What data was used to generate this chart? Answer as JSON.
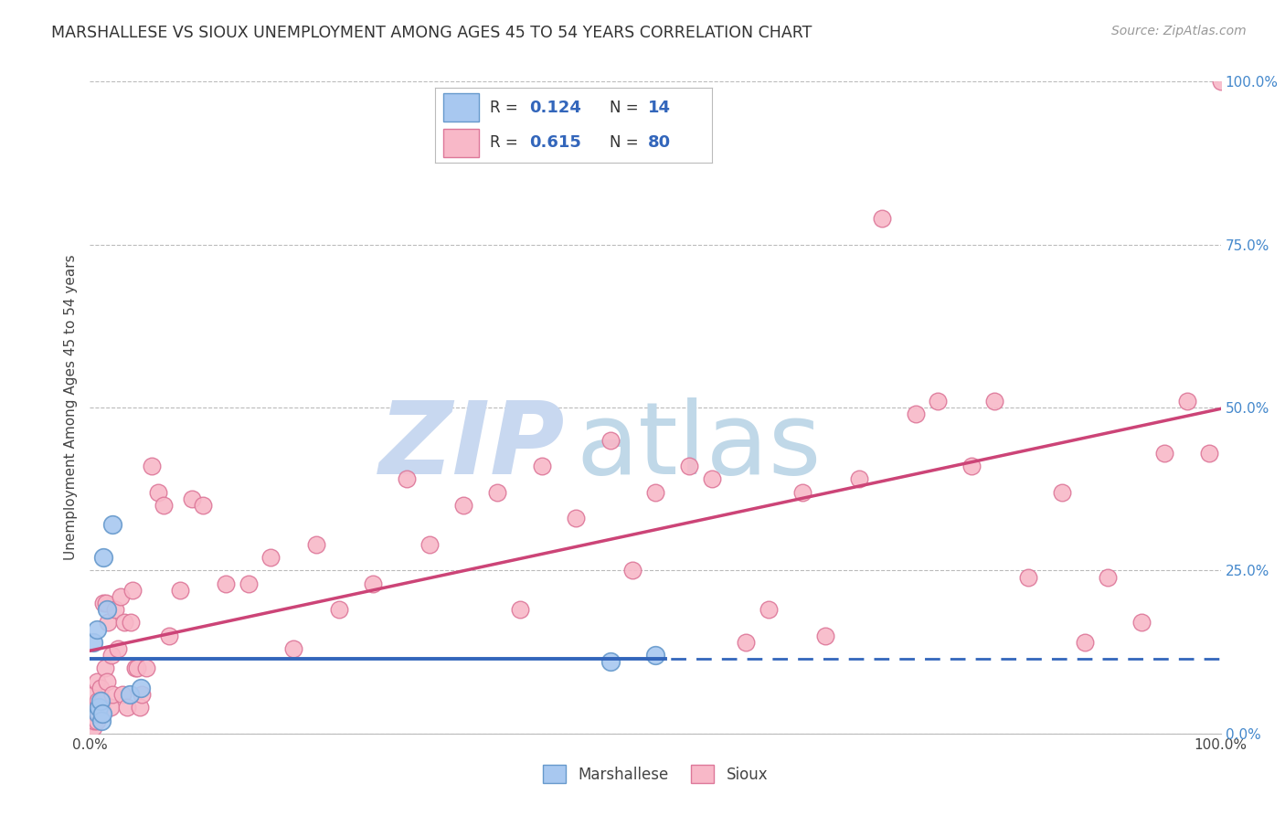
{
  "title": "MARSHALLESE VS SIOUX UNEMPLOYMENT AMONG AGES 45 TO 54 YEARS CORRELATION CHART",
  "source": "Source: ZipAtlas.com",
  "ylabel": "Unemployment Among Ages 45 to 54 years",
  "xlim": [
    0,
    1.0
  ],
  "ylim": [
    0,
    1.0
  ],
  "ytick_positions": [
    0.0,
    0.25,
    0.5,
    0.75,
    1.0
  ],
  "ytick_labels_right": [
    "0.0%",
    "25.0%",
    "50.0%",
    "75.0%",
    "100.0%"
  ],
  "xtick_positions": [
    0.0,
    1.0
  ],
  "xtick_labels": [
    "0.0%",
    "100.0%"
  ],
  "grid_color": "#bbbbbb",
  "background_color": "#ffffff",
  "marshallese_color": "#a8c8f0",
  "marshallese_edge_color": "#6699cc",
  "sioux_color": "#f8b8c8",
  "sioux_edge_color": "#dd7799",
  "marshallese_line_color": "#3366bb",
  "sioux_line_color": "#cc4477",
  "legend_color": "#3366bb",
  "watermark_zip_color": "#c8d8f0",
  "watermark_atlas_color": "#c0d8e8",
  "marshallese_x": [
    0.003,
    0.006,
    0.007,
    0.008,
    0.009,
    0.01,
    0.011,
    0.012,
    0.015,
    0.02,
    0.035,
    0.045,
    0.46,
    0.5
  ],
  "marshallese_y": [
    0.14,
    0.16,
    0.03,
    0.04,
    0.05,
    0.02,
    0.03,
    0.27,
    0.19,
    0.32,
    0.06,
    0.07,
    0.11,
    0.12
  ],
  "sioux_x": [
    0.001,
    0.002,
    0.003,
    0.003,
    0.004,
    0.004,
    0.005,
    0.006,
    0.006,
    0.007,
    0.008,
    0.009,
    0.01,
    0.011,
    0.012,
    0.013,
    0.014,
    0.015,
    0.016,
    0.018,
    0.019,
    0.02,
    0.022,
    0.025,
    0.027,
    0.029,
    0.03,
    0.033,
    0.036,
    0.038,
    0.04,
    0.042,
    0.044,
    0.046,
    0.05,
    0.055,
    0.06,
    0.065,
    0.07,
    0.08,
    0.09,
    0.1,
    0.12,
    0.14,
    0.16,
    0.18,
    0.2,
    0.22,
    0.25,
    0.28,
    0.3,
    0.33,
    0.36,
    0.38,
    0.4,
    0.43,
    0.46,
    0.48,
    0.5,
    0.53,
    0.55,
    0.58,
    0.6,
    0.63,
    0.65,
    0.68,
    0.7,
    0.73,
    0.75,
    0.78,
    0.8,
    0.83,
    0.86,
    0.88,
    0.9,
    0.93,
    0.95,
    0.97,
    0.99,
    1.0
  ],
  "sioux_y": [
    0.02,
    0.03,
    0.01,
    0.04,
    0.02,
    0.06,
    0.03,
    0.02,
    0.08,
    0.05,
    0.03,
    0.07,
    0.04,
    0.05,
    0.2,
    0.1,
    0.2,
    0.08,
    0.17,
    0.04,
    0.12,
    0.06,
    0.19,
    0.13,
    0.21,
    0.06,
    0.17,
    0.04,
    0.17,
    0.22,
    0.1,
    0.1,
    0.04,
    0.06,
    0.1,
    0.41,
    0.37,
    0.35,
    0.15,
    0.22,
    0.36,
    0.35,
    0.23,
    0.23,
    0.27,
    0.13,
    0.29,
    0.19,
    0.23,
    0.39,
    0.29,
    0.35,
    0.37,
    0.19,
    0.41,
    0.33,
    0.45,
    0.25,
    0.37,
    0.41,
    0.39,
    0.14,
    0.19,
    0.37,
    0.15,
    0.39,
    0.79,
    0.49,
    0.51,
    0.41,
    0.51,
    0.24,
    0.37,
    0.14,
    0.24,
    0.17,
    0.43,
    0.51,
    0.43,
    1.0
  ]
}
